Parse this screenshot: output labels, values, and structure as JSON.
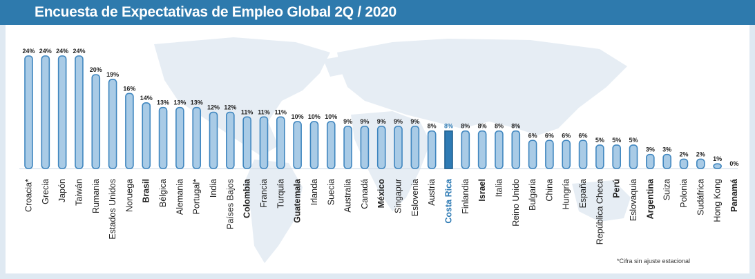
{
  "header": {
    "title": "Encuesta de Expectativas de Empleo Global 2Q / 2020"
  },
  "footnote": "*Cifra sin ajuste estacional",
  "colors": {
    "header": "#2e7aad",
    "bar_fill": "#a9cbe6",
    "bar_stroke": "#3f86bf",
    "highlight": "#2f7bb4"
  },
  "chart_data": {
    "type": "bar",
    "title": "Encuesta de Expectativas de Empleo Global 2Q / 2020",
    "xlabel": "",
    "ylabel": "",
    "ylim": [
      0,
      24
    ],
    "value_suffix": "%",
    "highlight": "Costa Rica",
    "bold_categories": [
      "Brasil",
      "Colombia",
      "Guatemala",
      "México",
      "Costa Rica",
      "Israel",
      "Perú",
      "Argentina",
      "Panamá"
    ],
    "categories": [
      "Croacia*",
      "Grecia",
      "Japón",
      "Taiwán",
      "Rumania",
      "Estados Unidos",
      "Noruega",
      "Brasil",
      "Bélgica",
      "Alemania",
      "Portugal*",
      "India",
      "Países Bajos",
      "Colombia",
      "Francia",
      "Turquía",
      "Guatemala",
      "Irlanda",
      "Suecia",
      "Australia",
      "Canadá",
      "México",
      "Singapur",
      "Eslovenia",
      "Austria",
      "Costa Rica",
      "Finlandia",
      "Israel",
      "Italia",
      "Reino Unido",
      "Bulgaria",
      "China",
      "Hungría",
      "España",
      "República Checa",
      "Perú",
      "Eslovaquia",
      "Argentina",
      "Suiza",
      "Polonia",
      "Sudáfrica",
      "Hong Kong",
      "Panamá"
    ],
    "values": [
      24,
      24,
      24,
      24,
      20,
      19,
      16,
      14,
      13,
      13,
      13,
      12,
      12,
      11,
      11,
      11,
      10,
      10,
      10,
      9,
      9,
      9,
      9,
      9,
      8,
      8,
      8,
      8,
      8,
      8,
      6,
      6,
      6,
      6,
      5,
      5,
      5,
      3,
      3,
      2,
      2,
      1,
      0
    ]
  }
}
